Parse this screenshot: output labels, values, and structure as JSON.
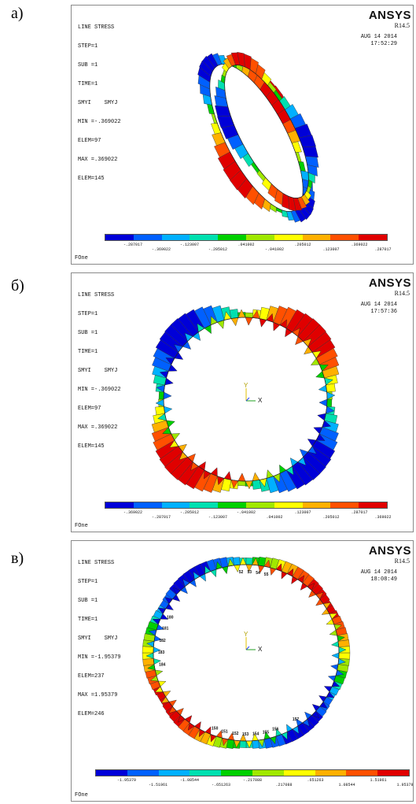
{
  "panels": [
    {
      "label": "а)",
      "info": [
        "LINE STRESS",
        "STEP=1",
        "SUB =1",
        "TIME=1",
        "SMYI    SMYJ",
        "MIN =-.369022",
        "ELEM=97",
        "MAX =.369022",
        "ELEM=145"
      ],
      "brand": "ANSYS",
      "revision": "R14.5",
      "date": "AUG 14 2014",
      "time": "17:52:29",
      "footer": "FOne",
      "colorbar_top": [
        "-.287017",
        "-.123007",
        ".041002",
        ".205012",
        ".369022"
      ],
      "colorbar_bottom": [
        "-.369022",
        "-.205012",
        "-.041002",
        ".123007",
        ".287017"
      ],
      "show_triad": false
    },
    {
      "label": "б)",
      "info": [
        "LINE STRESS",
        "STEP=1",
        "SUB =1",
        "TIME=1",
        "SMYI    SMYJ",
        "MIN =-.369022",
        "ELEM=97",
        "MAX =.369022",
        "ELEM=145"
      ],
      "brand": "ANSYS",
      "revision": "R14.5",
      "date": "AUG 14 2014",
      "time": "17:57:36",
      "footer": "FOne",
      "colorbar_top": [
        "-.369022",
        "-.205012",
        "-.041002",
        ".123007",
        ".287017"
      ],
      "colorbar_bottom": [
        "-.287017",
        "-.123007",
        ".041002",
        ".205012",
        ".369022"
      ],
      "show_triad": true,
      "triad": {
        "y": "Y",
        "x": "X"
      }
    },
    {
      "label": "в)",
      "info": [
        "LINE STRESS",
        "STEP=1",
        "SUB =1",
        "TIME=1",
        "SMYI    SMYJ",
        "MIN =-1.95379",
        "ELEM=237",
        "MAX =1.95379",
        "ELEM=246"
      ],
      "brand": "ANSYS",
      "revision": "R14.5",
      "date": "AUG 14 2014",
      "time": "18:08:49",
      "footer": "FOne",
      "colorbar_top": [
        "-1.95379",
        "-1.08544",
        "-.217088",
        ".651263",
        "1.51961"
      ],
      "colorbar_bottom": [
        "-1.51961",
        "-.651263",
        ".217088",
        "1.08544",
        "1.95379"
      ],
      "show_triad": true,
      "triad": {
        "y": "Y",
        "x": "X"
      },
      "node_numbers": [
        "52",
        "53",
        "54",
        "55",
        "180",
        "181",
        "182",
        "183",
        "184",
        "150",
        "151",
        "152",
        "153",
        "154",
        "155",
        "156",
        "157"
      ]
    }
  ],
  "colors": {
    "contour": [
      "#0000d8",
      "#0060ff",
      "#00b0ff",
      "#00e0b0",
      "#00d000",
      "#a0e800",
      "#ffff00",
      "#ffb000",
      "#ff5000",
      "#e00000"
    ]
  }
}
